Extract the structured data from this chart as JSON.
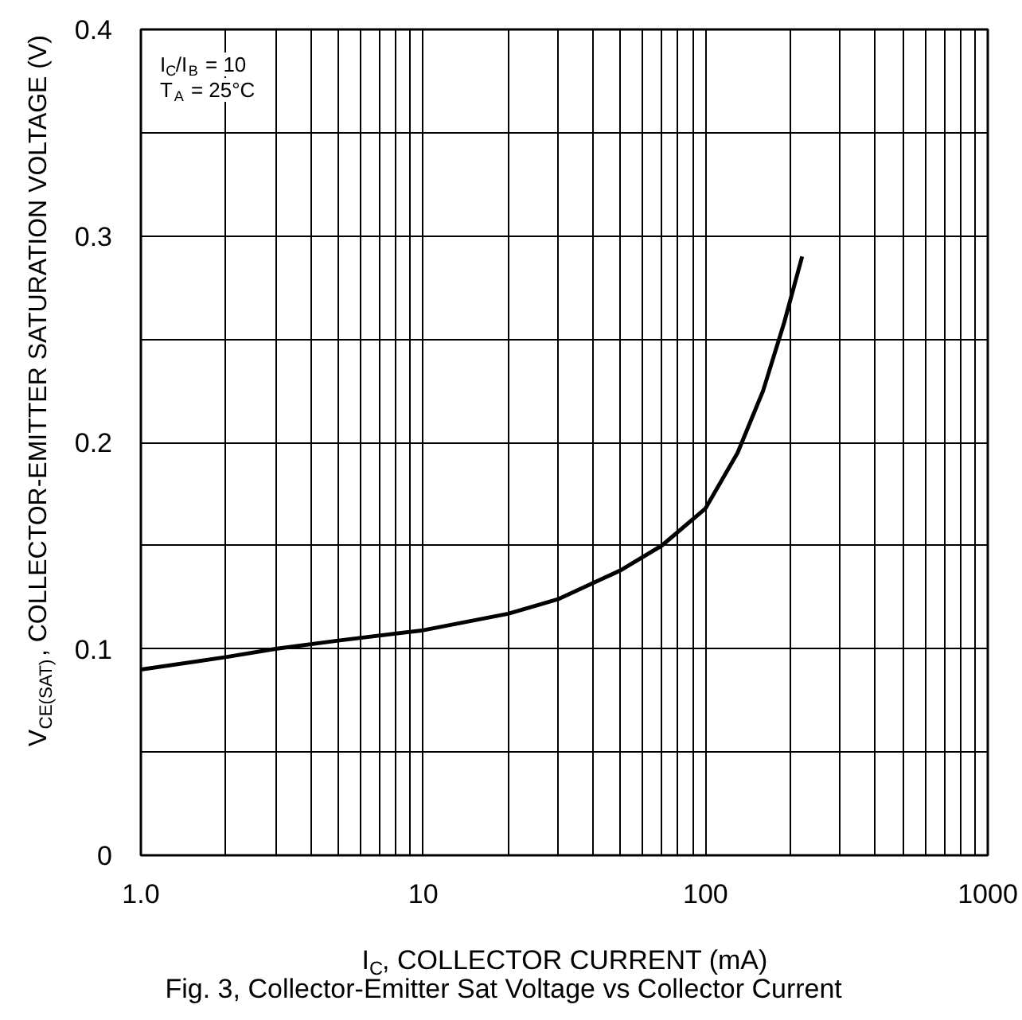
{
  "chart_data": {
    "type": "line",
    "title": "Fig. 3,  Collector-Emitter Sat Voltage vs Collector Current",
    "xlabel": "I$_{C}$, COLLECTOR CURRENT (mA)",
    "ylabel": "V$_{CE(SAT)}$, COLLECTOR-EMITTER SATURATION VOLTAGE (V)",
    "annotations": [
      "I$_{C}$/I$_{B}$ = 10",
      "T$_{A}$ = 25°C"
    ],
    "log": "x",
    "grid": true,
    "xlim": [
      1,
      1000
    ],
    "xticks": [
      {
        "value": 1,
        "label": "1.0"
      },
      10,
      100,
      1000
    ],
    "ylim": [
      0,
      0.4
    ],
    "yticks": [
      0,
      0.1,
      0.2,
      0.3,
      0.4
    ],
    "series": [
      {
        "color": "#000000",
        "x": [
          1,
          2,
          3,
          5,
          10,
          20,
          30,
          50,
          70,
          100,
          130,
          160,
          190,
          220
        ],
        "values": [
          0.09,
          0.096,
          0.1,
          0.104,
          0.109,
          0.117,
          0.124,
          0.138,
          0.15,
          0.168,
          0.195,
          0.225,
          0.258,
          0.29
        ]
      }
    ]
  }
}
